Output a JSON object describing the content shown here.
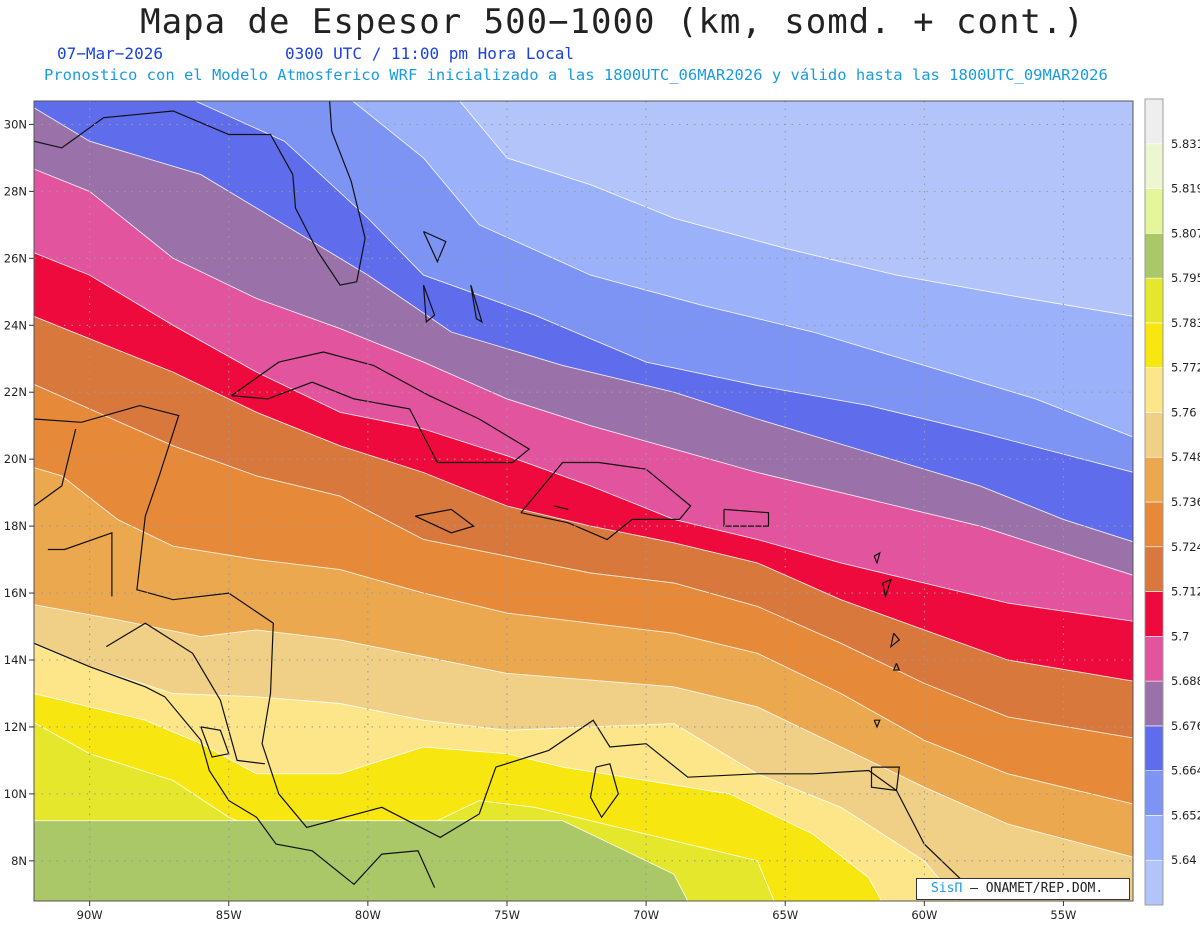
{
  "header": {
    "title": "Mapa de Espesor 500−1000 (km, somd. + cont.)",
    "date": "07−Mar−2026",
    "time": "0300 UTC / 11:00 pm Hora Local",
    "subtitle": "Pronostico con el Modelo Atmosferico WRF inicializado a las 1800UTC_06MAR2026 y válido hasta las  1800UTC_09MAR2026"
  },
  "map": {
    "lon_range": [
      -92.0,
      -52.5
    ],
    "lat_range": [
      6.8,
      30.7
    ],
    "lon_ticks": [
      {
        "value": -90,
        "label": "90W"
      },
      {
        "value": -85,
        "label": "85W"
      },
      {
        "value": -80,
        "label": "80W"
      },
      {
        "value": -75,
        "label": "75W"
      },
      {
        "value": -70,
        "label": "70W"
      },
      {
        "value": -65,
        "label": "65W"
      },
      {
        "value": -60,
        "label": "60W"
      },
      {
        "value": -55,
        "label": "55W"
      }
    ],
    "lat_ticks": [
      {
        "value": 30,
        "label": "30N"
      },
      {
        "value": 28,
        "label": "28N"
      },
      {
        "value": 26,
        "label": "26N"
      },
      {
        "value": 24,
        "label": "24N"
      },
      {
        "value": 22,
        "label": "22N"
      },
      {
        "value": 20,
        "label": "20N"
      },
      {
        "value": 18,
        "label": "18N"
      },
      {
        "value": 16,
        "label": "16N"
      },
      {
        "value": 14,
        "label": "14N"
      },
      {
        "value": 12,
        "label": "12N"
      },
      {
        "value": 10,
        "label": "10N"
      },
      {
        "value": 8,
        "label": "8N"
      }
    ]
  },
  "colorbar": {
    "bins": [
      {
        "color": "#b3c4fb",
        "label": "5.64"
      },
      {
        "color": "#9bb2fa",
        "label": "5.652"
      },
      {
        "color": "#7d94f4",
        "label": "5.664"
      },
      {
        "color": "#5f6ded",
        "label": "5.676"
      },
      {
        "color": "#9a72a9",
        "label": "5.688"
      },
      {
        "color": "#e2559e",
        "label": "5.7"
      },
      {
        "color": "#ef0a3d",
        "label": "5.712"
      },
      {
        "color": "#d9783d",
        "label": "5.724"
      },
      {
        "color": "#e68a39",
        "label": "5.736"
      },
      {
        "color": "#eca84f",
        "label": "5.748"
      },
      {
        "color": "#f0cf86",
        "label": "5.76"
      },
      {
        "color": "#fde58a",
        "label": "5.772"
      },
      {
        "color": "#f7e610",
        "label": "5.783"
      },
      {
        "color": "#e4e72b",
        "label": "5.795"
      },
      {
        "color": "#aac868",
        "label": "5.807"
      },
      {
        "color": "#e4f59a",
        "label": "5.819"
      },
      {
        "color": "#eef6d1",
        "label": "5.831"
      },
      {
        "color": "#eeeeee",
        "label": ""
      }
    ]
  },
  "footer": {
    "credit_brand": "SisΠ",
    "credit_text": " – ONAMET/REP.DOM."
  }
}
